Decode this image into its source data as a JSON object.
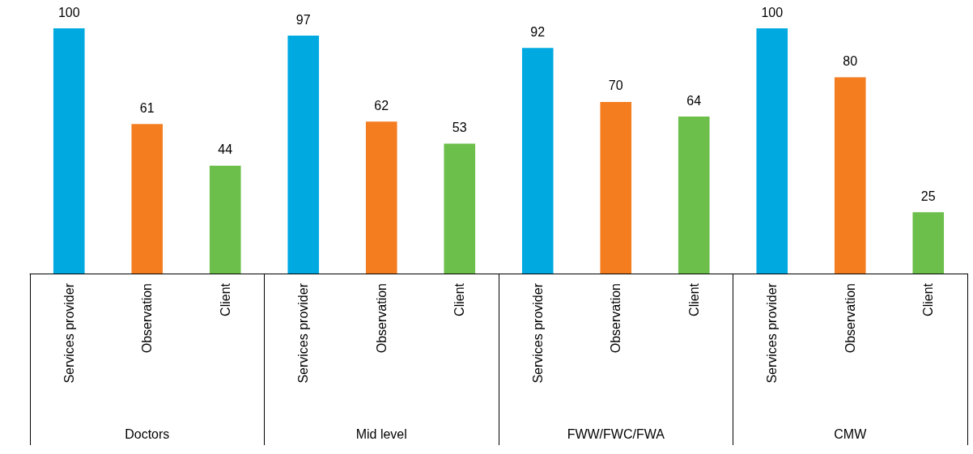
{
  "chart_data": {
    "type": "bar",
    "categories": [
      "Services provider",
      "Observation",
      "Client",
      "Services provider",
      "Observation",
      "Client",
      "Services provider",
      "Observation",
      "Client",
      "Services provider",
      "Observation",
      "Client"
    ],
    "values": [
      100,
      61,
      44,
      97,
      62,
      53,
      92,
      70,
      64,
      100,
      80,
      25
    ],
    "colors": [
      "#00a9e0",
      "#f47d20",
      "#6cbf4a",
      "#00a9e0",
      "#f47d20",
      "#6cbf4a",
      "#00a9e0",
      "#f47d20",
      "#6cbf4a",
      "#00a9e0",
      "#f47d20",
      "#6cbf4a"
    ],
    "annotations": [
      "Doctors",
      "Mid level",
      "FWW/FWC/FWA",
      "CMW"
    ],
    "data_labels": true
  }
}
